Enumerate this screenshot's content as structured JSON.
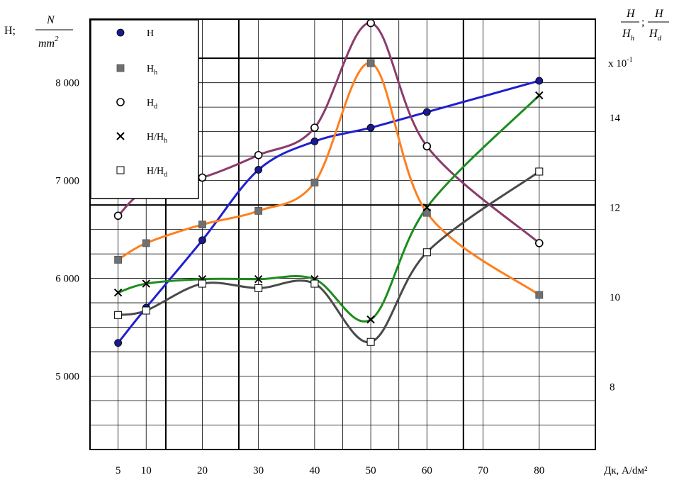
{
  "chart_data": {
    "type": "line",
    "x": [
      5,
      10,
      20,
      30,
      40,
      50,
      60,
      80
    ],
    "xlabel": "Дк, А/dм²",
    "x_ticks": [
      "5",
      "10",
      "20",
      "30",
      "40",
      "50",
      "60",
      "70",
      "80"
    ],
    "xlim": [
      0,
      90
    ],
    "left_axis": {
      "label_prefix": "H;",
      "label_num": "N",
      "label_den": "mm",
      "label_den_exp": "2",
      "ticks": [
        "5 000",
        "6 000",
        "7 000",
        "8 000"
      ],
      "tick_values": [
        5000,
        6000,
        7000,
        8000
      ],
      "ylim": [
        4250,
        8650
      ]
    },
    "right_axis": {
      "label_1_num": "H",
      "label_1_den": "H",
      "label_1_den_sub": "h",
      "separator": ";",
      "label_2_num": "H",
      "label_2_den": "H",
      "label_2_den_sub": "d",
      "scale_note": "x 10",
      "scale_exp": "-1",
      "ticks": [
        "8",
        "10",
        "12",
        "14"
      ],
      "tick_values": [
        8,
        10,
        12,
        14
      ],
      "ylim": [
        6.6,
        16.2
      ]
    },
    "grid": true,
    "legend_position": "top-left",
    "series": [
      {
        "name": "H",
        "sub": "",
        "axis": "left",
        "marker": "circle-filled",
        "color": "#1f1fd0",
        "values": [
          5340,
          5700,
          6390,
          7110,
          7400,
          7540,
          7700,
          8020
        ]
      },
      {
        "name": "H",
        "sub": "h",
        "axis": "left",
        "marker": "square-filled",
        "color": "#ff7f1e",
        "values": [
          6190,
          6360,
          6550,
          6690,
          6980,
          8200,
          6670,
          5830
        ]
      },
      {
        "name": "H",
        "sub": "d",
        "axis": "left",
        "marker": "circle-open",
        "color": "#8b3b6b",
        "values": [
          6640,
          6900,
          7030,
          7260,
          7540,
          8610,
          7350,
          6360
        ]
      },
      {
        "name": "H/H",
        "sub": "h",
        "axis": "right",
        "marker": "x",
        "color": "#1e8c1e",
        "values": [
          10.1,
          10.3,
          10.4,
          10.4,
          10.4,
          9.5,
          12.0,
          14.5
        ]
      },
      {
        "name": "H/H",
        "sub": "d",
        "axis": "right",
        "marker": "square-open",
        "color": "#4a4a4a",
        "values": [
          9.6,
          9.7,
          10.3,
          10.2,
          10.3,
          9.0,
          11.0,
          12.8
        ]
      }
    ]
  }
}
